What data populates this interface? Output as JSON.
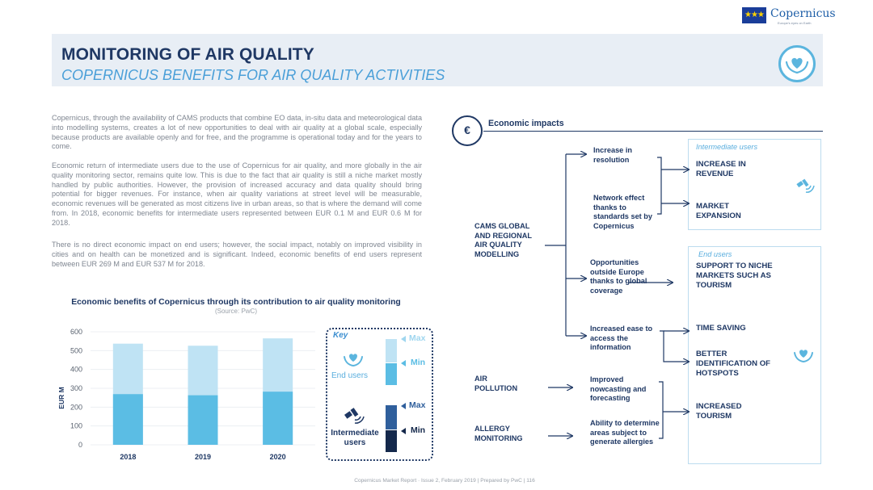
{
  "logo": {
    "brand": "Copernicus",
    "tagline": "Europe's eyes on Earth"
  },
  "header": {
    "title": "MONITORING OF AIR QUALITY",
    "subtitle": "COPERNICUS BENEFITS FOR AIR QUALITY ACTIVITIES",
    "icon": "hands-heart-icon"
  },
  "body": {
    "p1": "Copernicus, through the availability of CAMS products that combine EO data, in-situ data and meteorological data into modelling systems, creates a lot of new opportunities to deal with air quality at a global scale, especially because products are available openly and for free, and the programme is operational today and for the years to come.",
    "p2": "Economic return of intermediate users due to the use of Copernicus for air quality, and more globally in the air quality monitoring sector, remains quite low. This is due to the fact that air quality is still a niche market mostly handled by public authorities. However, the provision of increased accuracy and data quality should bring potential for bigger revenues. For instance, when air quality variations at street level will be measurable, economic revenues will be generated as most citizens live in urban areas, so that is where the demand will come from. In 2018, economic benefits for intermediate users represented between EUR 0.1 M and EUR 0.6 M for 2018.",
    "p3": "There is no direct economic impact on end users; however, the social impact, notably on improved visibility in cities and on health can be monetized and is significant. Indeed, economic benefits of end users represent between EUR 269 M and EUR 537 M for 2018."
  },
  "chart_data": {
    "type": "bar",
    "title": "Economic benefits of Copernicus through its contribution to air quality monitoring",
    "source": "(Source: PwC)",
    "ylabel": "EUR M",
    "ylim": [
      0,
      600
    ],
    "yticks": [
      "0",
      "100",
      "200",
      "300",
      "400",
      "500",
      "600"
    ],
    "categories": [
      "2018",
      "2019",
      "2020"
    ],
    "series": [
      {
        "name": "Min",
        "values": [
          269,
          263,
          282
        ],
        "color": "#5bbde4"
      },
      {
        "name": "Max",
        "values": [
          537,
          526,
          565
        ],
        "color": "#bfe3f4"
      }
    ]
  },
  "key": {
    "title": "Key",
    "end_users": "End users",
    "intermediate_users": "Intermediate users",
    "max": "Max",
    "min": "Min",
    "end_max_color": "#bfe3f4",
    "end_min_color": "#5bbde4",
    "int_max_color": "#2f5f9c",
    "int_min_color": "#14284b"
  },
  "diagram": {
    "title": "Economic impacts",
    "icon": "euro-coins-icon",
    "group_intermediate": "Intermediate users",
    "group_end": "End users",
    "sources": [
      "CAMS GLOBAL AND REGIONAL AIR QUALITY MODELLING",
      "AIR POLLUTION",
      "ALLERGY MONITORING"
    ],
    "mid": [
      "Increase in resolution",
      "Network effect thanks to standards set by Copernicus",
      "Opportunities outside Europe thanks to global coverage",
      "Increased ease to access the information",
      "Improved nowcasting and forecasting",
      "Ability to determine areas subject to generate allergies"
    ],
    "outcomes": [
      "INCREASE IN REVENUE",
      "MARKET EXPANSION",
      "SUPPORT TO NICHE MARKETS SUCH AS TOURISM",
      "TIME SAVING",
      "BETTER IDENTIFICATION OF HOTSPOTS",
      "INCREASED TOURISM"
    ]
  },
  "footer": "Copernicus Market Report · Issue 2, February 2019 | Prepared by PwC |   116"
}
